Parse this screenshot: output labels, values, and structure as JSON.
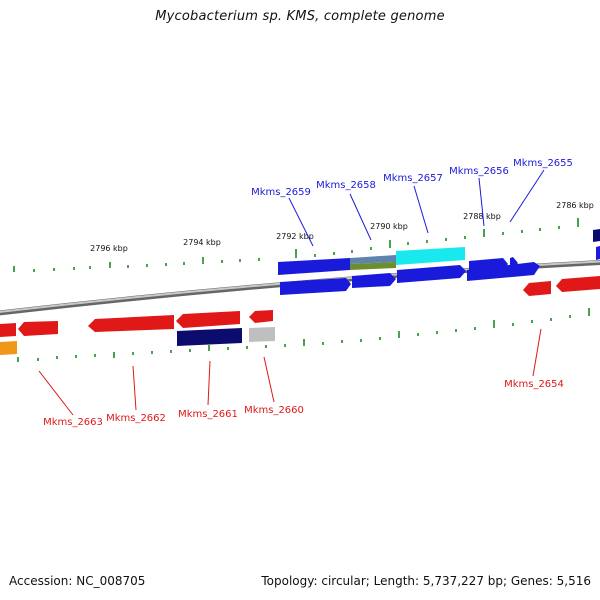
{
  "title": "Mycobacterium sp. KMS, complete genome",
  "footer": {
    "accession": "Accession: NC_008705",
    "info": "Topology: circular; Length: 5,737,227 bp; Genes: 5,516"
  },
  "scale_labels": [
    "2796 kbp",
    "2794 kbp",
    "2792 kbp",
    "2790 kbp",
    "2788 kbp",
    "2786 kbp"
  ],
  "forward_genes": [
    "Mkms_2659",
    "Mkms_2658",
    "Mkms_2657",
    "Mkms_2656",
    "Mkms_2655"
  ],
  "reverse_genes": [
    "Mkms_2663",
    "Mkms_2662",
    "Mkms_2661",
    "Mkms_2660",
    "Mkms_2654"
  ],
  "colors": {
    "forward": "#1a1adb",
    "reverse": "#e01818",
    "navy": "#0c0c6e",
    "cyan": "#19e8ee",
    "steel": "#5e84ad",
    "olive": "#6c8e2c",
    "gray": "#bfbfbf",
    "orange": "#f09618",
    "tick": "#1f8a1f",
    "backbone": "#8c8c8c"
  }
}
